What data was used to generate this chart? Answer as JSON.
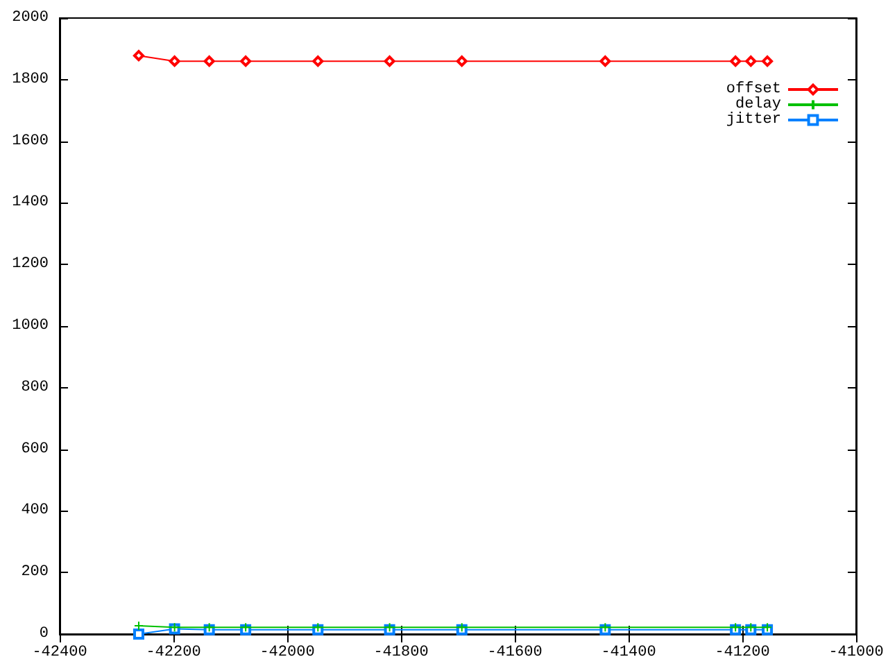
{
  "chart_data": {
    "type": "line",
    "x": [
      -42261,
      -42198,
      -42137,
      -42073,
      -41946,
      -41820,
      -41693,
      -41441,
      -41212,
      -41185,
      -41156
    ],
    "series": [
      {
        "name": "offset",
        "color": "#ff0000",
        "marker": "diamond",
        "values": [
          1878,
          1860,
          1860,
          1860,
          1860,
          1860,
          1860,
          1860,
          1860,
          1860,
          1860
        ]
      },
      {
        "name": "delay",
        "color": "#00c000",
        "marker": "cross",
        "values": [
          27,
          22,
          22,
          22,
          22,
          22,
          22,
          22,
          22,
          22,
          22
        ]
      },
      {
        "name": "jitter",
        "color": "#0080ff",
        "marker": "square",
        "values": [
          0,
          17,
          14,
          14,
          14,
          14,
          14,
          14,
          14,
          14,
          14
        ]
      }
    ],
    "xlim": [
      -42400,
      -41000
    ],
    "xticks": [
      -42400,
      -42200,
      -42000,
      -41800,
      -41600,
      -41400,
      -41200,
      -41000
    ],
    "ylim": [
      0,
      2000
    ],
    "yticks": [
      0,
      200,
      400,
      600,
      800,
      1000,
      1200,
      1400,
      1600,
      1800,
      2000
    ],
    "grid": false,
    "legend": "top right",
    "line_style": "solid"
  }
}
